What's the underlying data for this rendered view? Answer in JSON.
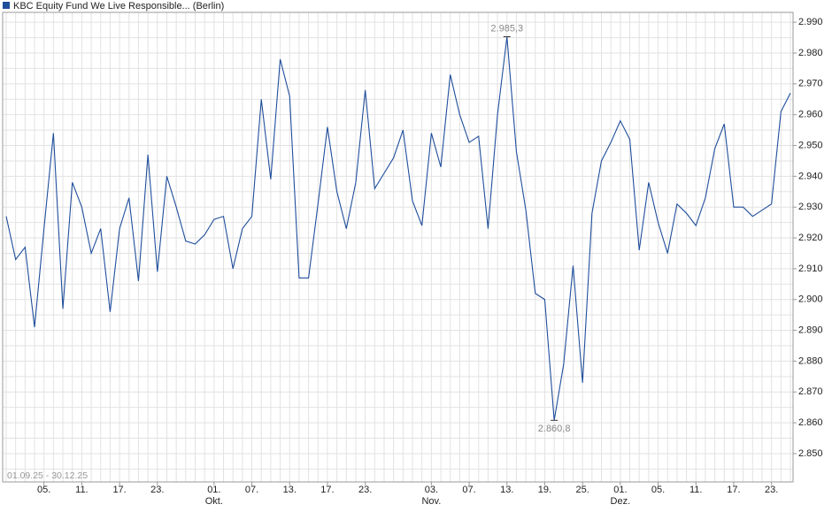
{
  "chart_data": {
    "type": "line",
    "subtitle": "01.09.25 - 30.12.25",
    "categories": [
      null,
      null,
      null,
      null,
      "05.",
      null,
      null,
      null,
      "11.",
      null,
      null,
      null,
      "17.",
      null,
      null,
      null,
      "23.",
      null,
      null,
      null,
      null,
      null,
      "01.",
      null,
      null,
      null,
      "07.",
      null,
      null,
      null,
      "13.",
      null,
      null,
      null,
      "17.",
      null,
      null,
      null,
      "23.",
      null,
      null,
      null,
      null,
      null,
      null,
      "03.",
      null,
      null,
      null,
      "07.",
      null,
      null,
      null,
      "13.",
      null,
      null,
      null,
      "19.",
      null,
      null,
      null,
      "25.",
      null,
      null,
      null,
      "01.",
      null,
      null,
      null,
      "05.",
      null,
      null,
      null,
      "11.",
      null,
      null,
      null,
      "17.",
      null,
      null,
      null,
      "23.",
      null,
      null
    ],
    "category_groups": [
      null,
      null,
      null,
      null,
      null,
      null,
      null,
      null,
      null,
      null,
      null,
      null,
      null,
      null,
      null,
      null,
      null,
      null,
      null,
      null,
      null,
      null,
      "Okt.",
      null,
      null,
      null,
      null,
      null,
      null,
      null,
      null,
      null,
      null,
      null,
      null,
      null,
      null,
      null,
      null,
      null,
      null,
      null,
      null,
      null,
      null,
      "Nov.",
      null,
      null,
      null,
      null,
      null,
      null,
      null,
      null,
      null,
      null,
      null,
      null,
      null,
      null,
      null,
      null,
      null,
      null,
      null,
      "Dez.",
      null,
      null,
      null,
      null,
      null,
      null,
      null,
      null,
      null,
      null,
      null,
      null,
      null,
      null,
      null,
      null,
      null,
      null
    ],
    "series": [
      {
        "name": "KBC Equity Fund We Live Responsible... (Berlin)",
        "color": "#1f4e9c",
        "values": [
          2.927,
          2.913,
          2.917,
          2.891,
          2.923,
          2.954,
          2.897,
          2.938,
          2.93,
          2.915,
          2.923,
          2.896,
          2.923,
          2.933,
          2.906,
          2.947,
          2.909,
          2.94,
          2.93,
          2.919,
          2.918,
          2.921,
          2.926,
          2.927,
          2.91,
          2.923,
          2.927,
          2.965,
          2.939,
          2.978,
          2.966,
          2.907,
          2.907,
          2.931,
          2.956,
          2.935,
          2.923,
          2.938,
          2.968,
          2.936,
          2.941,
          2.946,
          2.955,
          2.932,
          2.924,
          2.954,
          2.943,
          2.973,
          2.96,
          2.951,
          2.953,
          2.923,
          2.96,
          2.9853,
          2.948,
          2.929,
          2.902,
          2.9,
          2.8608,
          2.879,
          2.911,
          2.873,
          2.928,
          2.945,
          2.951,
          2.958,
          2.952,
          2.916,
          2.938,
          2.925,
          2.915,
          2.931,
          2.928,
          2.924,
          2.933,
          2.949,
          2.957,
          2.93,
          2.93,
          2.927,
          2.929,
          2.931,
          2.961,
          2.967
        ],
        "value_labels": [
          null,
          null,
          null,
          null,
          null,
          null,
          null,
          null,
          null,
          null,
          null,
          null,
          null,
          null,
          null,
          null,
          null,
          null,
          null,
          null,
          null,
          null,
          null,
          null,
          null,
          null,
          null,
          null,
          null,
          null,
          null,
          null,
          null,
          null,
          null,
          null,
          null,
          null,
          null,
          null,
          null,
          null,
          null,
          null,
          null,
          null,
          null,
          null,
          null,
          null,
          null,
          null,
          null,
          "2.985,3",
          null,
          null,
          null,
          null,
          "2.860,8",
          null,
          null,
          null,
          null,
          null,
          null,
          null,
          null,
          null,
          null,
          null,
          null,
          null,
          null,
          null,
          null,
          null,
          null,
          null,
          null,
          null,
          null,
          null,
          null,
          null
        ]
      }
    ],
    "ylim": [
      2.8408,
      2.9932
    ],
    "yticks": [
      {
        "value": 2.85,
        "label": "2.850"
      },
      {
        "value": 2.86,
        "label": "2.860"
      },
      {
        "value": 2.87,
        "label": "2.870"
      },
      {
        "value": 2.88,
        "label": "2.880"
      },
      {
        "value": 2.89,
        "label": "2.890"
      },
      {
        "value": 2.9,
        "label": "2.900"
      },
      {
        "value": 2.91,
        "label": "2.910"
      },
      {
        "value": 2.92,
        "label": "2.920"
      },
      {
        "value": 2.93,
        "label": "2.930"
      },
      {
        "value": 2.94,
        "label": "2.940"
      },
      {
        "value": 2.95,
        "label": "2.950"
      },
      {
        "value": 2.96,
        "label": "2.960"
      },
      {
        "value": 2.97,
        "label": "2.970"
      },
      {
        "value": 2.98,
        "label": "2.980"
      },
      {
        "value": 2.99,
        "label": "2.990"
      }
    ],
    "minor_yticks": [
      2.845,
      2.855,
      2.865,
      2.875,
      2.885,
      2.895,
      2.905,
      2.915,
      2.925,
      2.935,
      2.945,
      2.955,
      2.965,
      2.975,
      2.985
    ],
    "grid": true,
    "legend": "top-left"
  }
}
